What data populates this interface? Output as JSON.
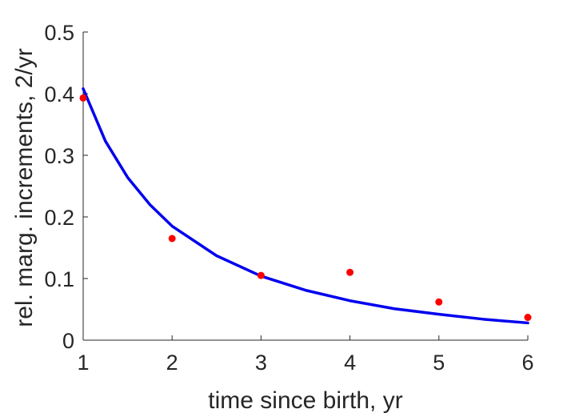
{
  "chart_data": {
    "type": "scatter",
    "xlabel": "time since birth, yr",
    "ylabel": "rel. marg. increments, 2/yr",
    "xlim": [
      1,
      6
    ],
    "ylim": [
      0,
      0.5
    ],
    "xticks": [
      1,
      2,
      3,
      4,
      5,
      6
    ],
    "xtick_labels": [
      "1",
      "2",
      "3",
      "4",
      "5",
      "6"
    ],
    "yticks": [
      0,
      0.1,
      0.2,
      0.3,
      0.4,
      0.5
    ],
    "ytick_labels": [
      "0",
      "0.1",
      "0.2",
      "0.3",
      "0.4",
      "0.5"
    ],
    "grid": false,
    "series": [
      {
        "kind": "points",
        "color": "#ff0000",
        "x": [
          1,
          2,
          3,
          4,
          5,
          6
        ],
        "y": [
          0.393,
          0.165,
          0.105,
          0.11,
          0.062,
          0.037
        ]
      },
      {
        "kind": "line",
        "color": "#0000ee",
        "x": [
          1,
          1.25,
          1.5,
          1.75,
          2,
          2.5,
          3,
          3.5,
          4,
          4.5,
          5,
          5.5,
          6
        ],
        "y": [
          0.408,
          0.323,
          0.264,
          0.22,
          0.185,
          0.137,
          0.104,
          0.081,
          0.064,
          0.051,
          0.042,
          0.034,
          0.028
        ]
      }
    ]
  }
}
